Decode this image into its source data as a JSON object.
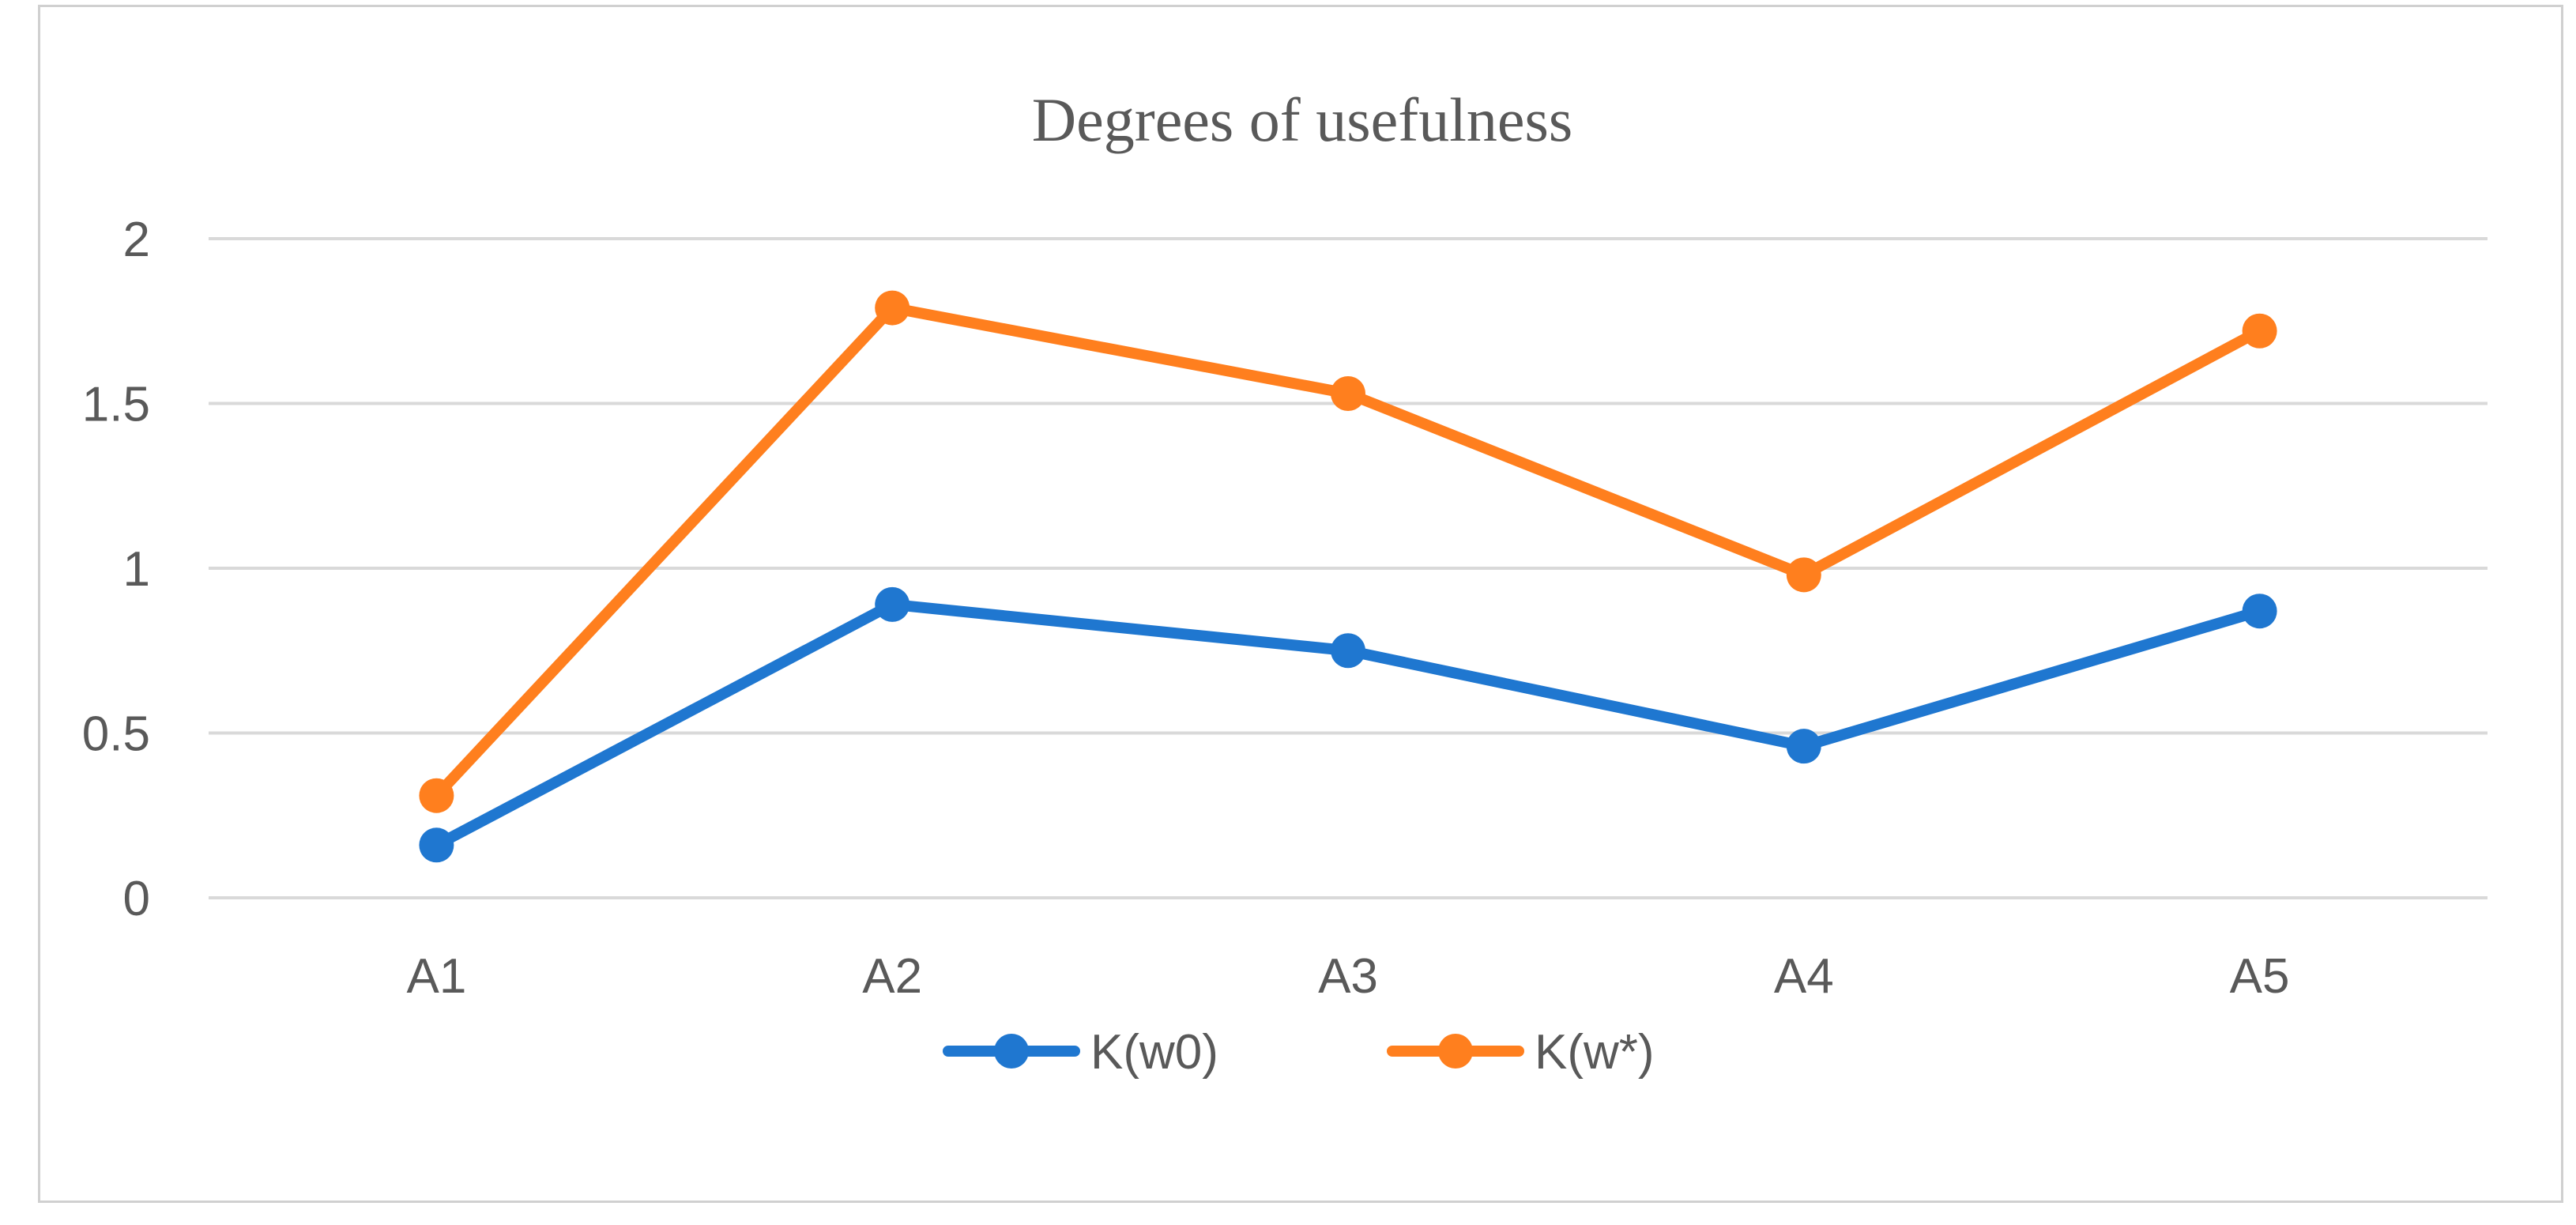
{
  "chart_data": {
    "type": "line",
    "title": "Degrees of usefulness",
    "xlabel": "",
    "ylabel": "",
    "categories": [
      "A1",
      "A2",
      "A3",
      "A4",
      "A5"
    ],
    "ylim": [
      0,
      2
    ],
    "yticks": [
      "0",
      "0.5",
      "1",
      "1.5",
      "2"
    ],
    "grid": true,
    "legend_position": "bottom",
    "series": [
      {
        "name": "K(w0)",
        "color": "#1f77d0",
        "values": [
          0.16,
          0.89,
          0.75,
          0.46,
          0.87
        ]
      },
      {
        "name": "K(w*)",
        "color": "#ff7f1e",
        "values": [
          0.31,
          1.79,
          1.53,
          0.98,
          1.72
        ]
      }
    ]
  }
}
